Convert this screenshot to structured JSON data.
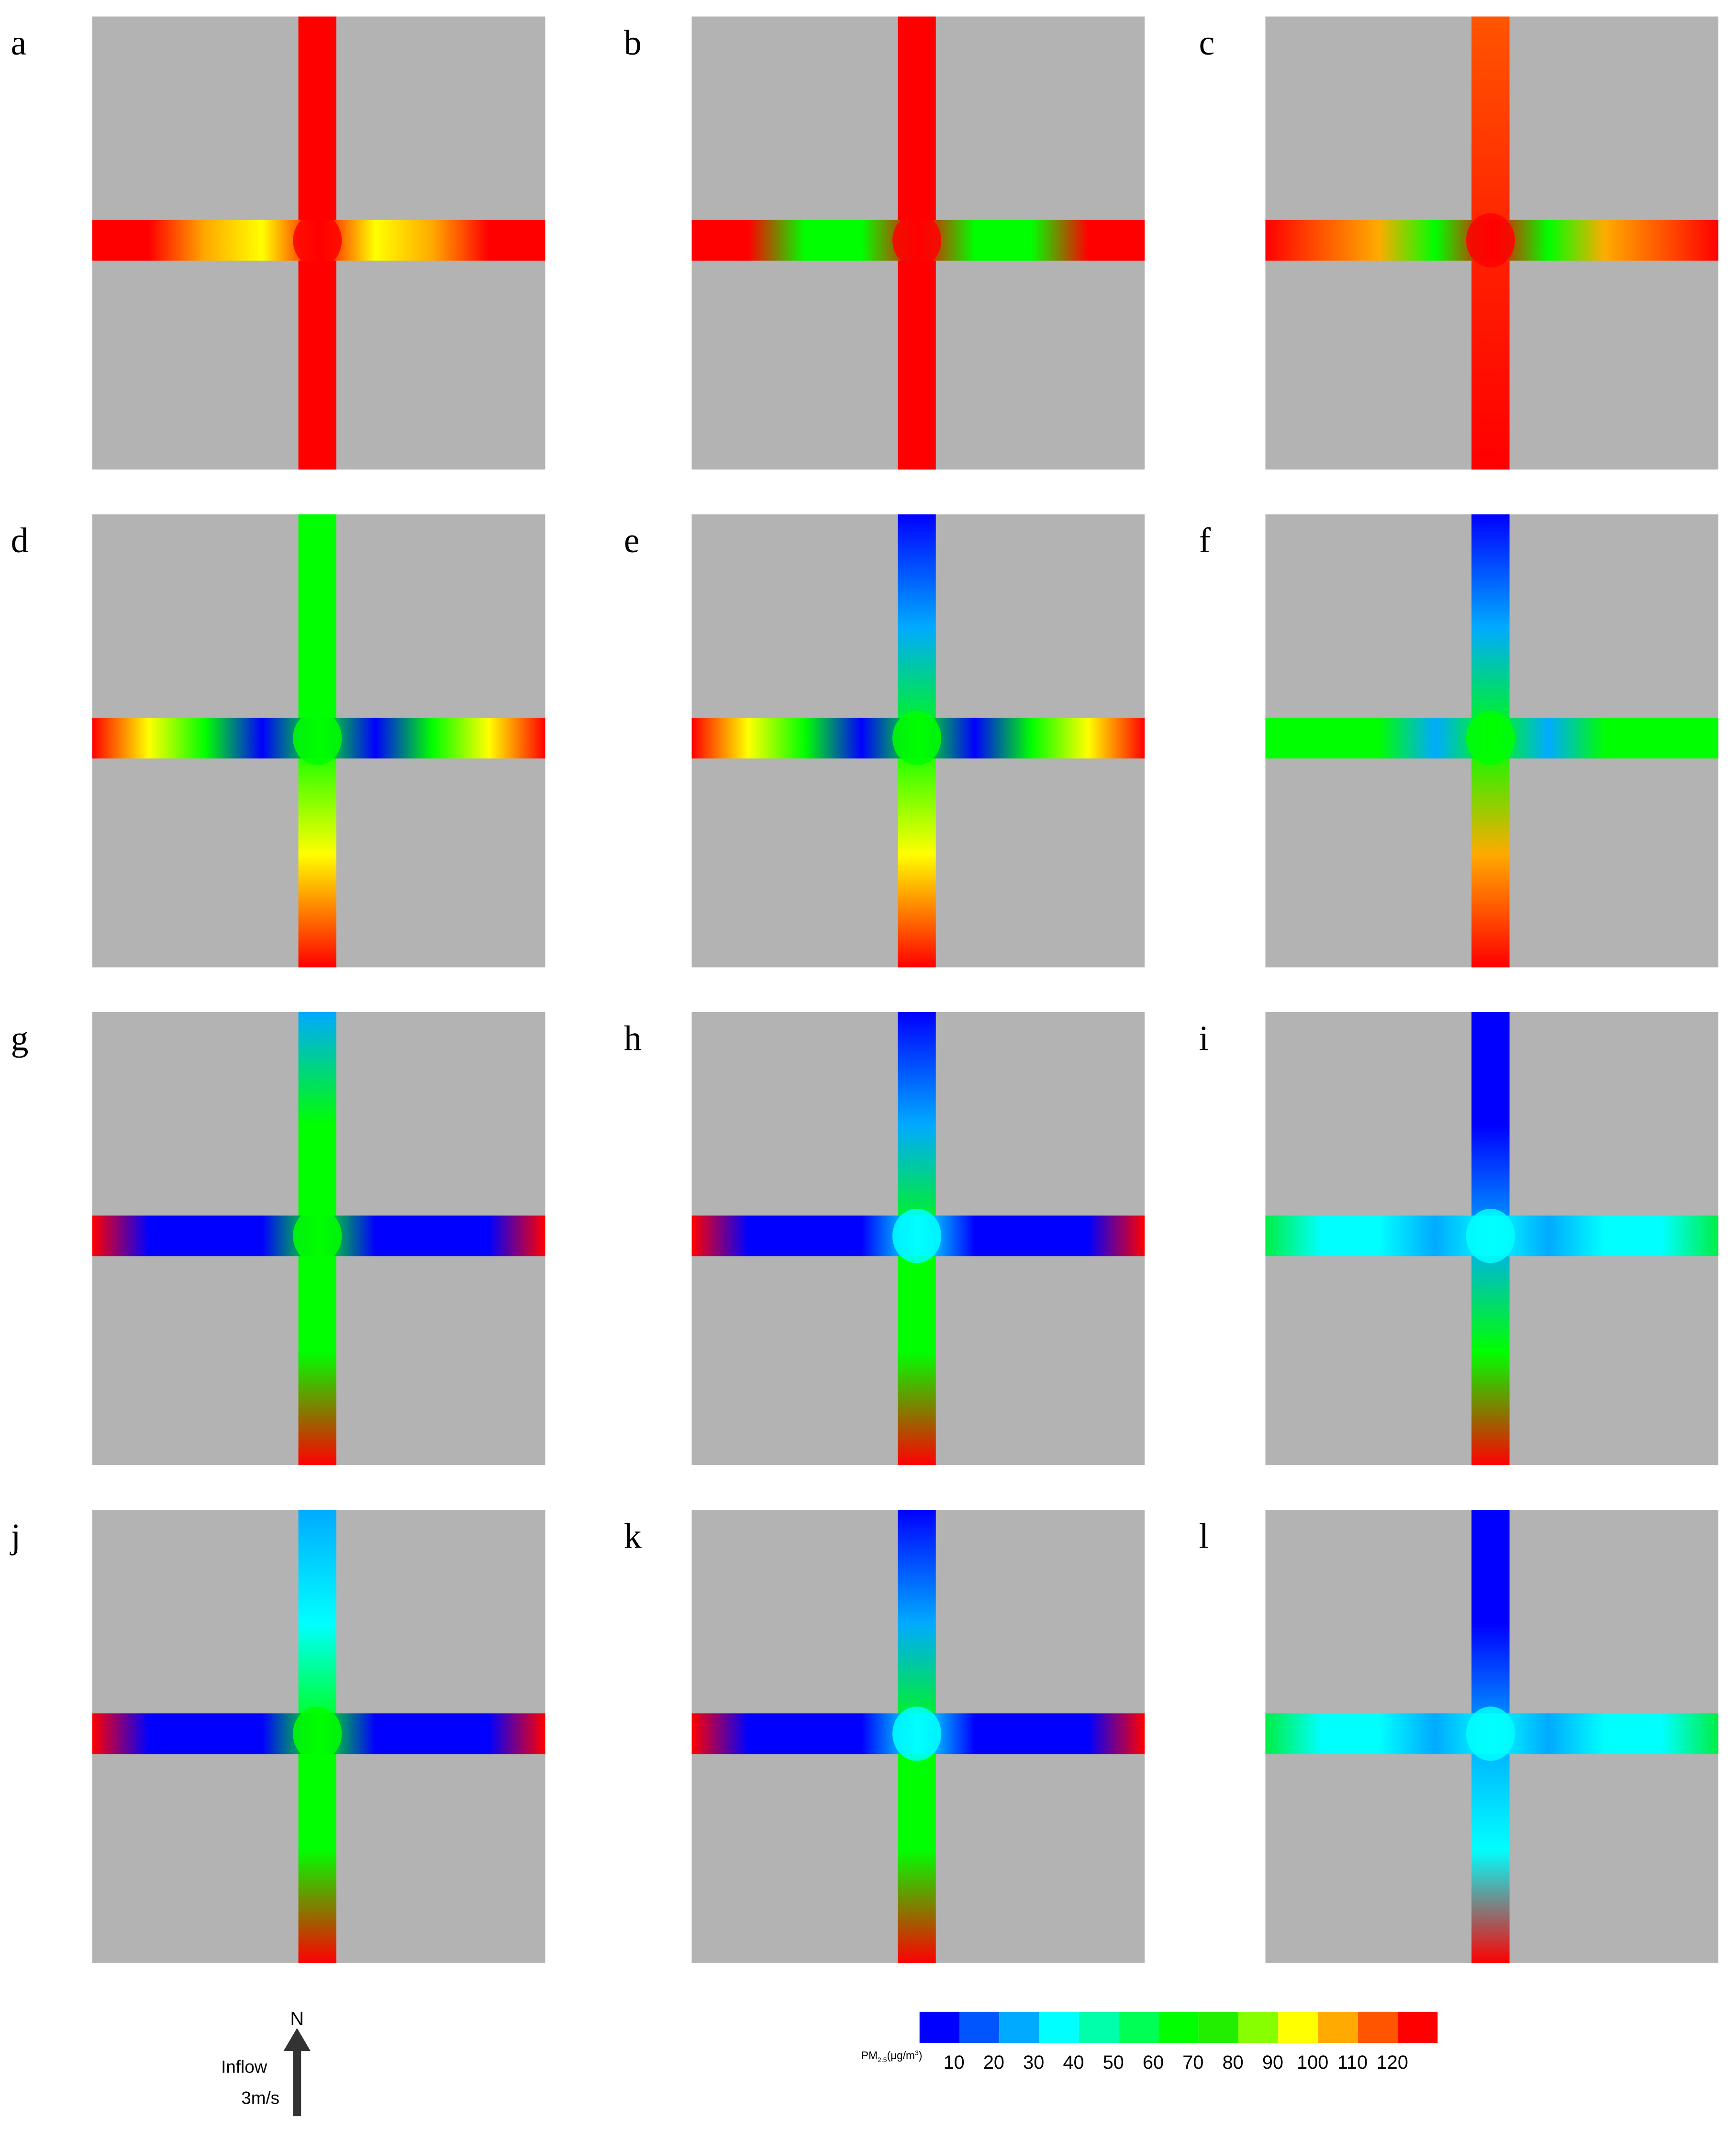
{
  "panels": [
    {
      "label": "a"
    },
    {
      "label": "b"
    },
    {
      "label": "c"
    },
    {
      "label": "d"
    },
    {
      "label": "e"
    },
    {
      "label": "f"
    },
    {
      "label": "g"
    },
    {
      "label": "h"
    },
    {
      "label": "i"
    },
    {
      "label": "j"
    },
    {
      "label": "k"
    },
    {
      "label": "l"
    }
  ],
  "compass": {
    "north": "N",
    "inflow": "Inflow",
    "speed": "3m/s"
  },
  "colorbar": {
    "label": {
      "prefix": "PM",
      "sub": "2.5",
      "unit": "(μg/m",
      "sup": "3",
      "close": ")"
    },
    "ticks": [
      10,
      20,
      30,
      40,
      50,
      60,
      70,
      80,
      90,
      100,
      110,
      120
    ],
    "colors": [
      "#0000ff",
      "#0055ff",
      "#00aaff",
      "#00ffff",
      "#00ffaa",
      "#00ff55",
      "#00ff00",
      "#22ee00",
      "#88ff00",
      "#ffff00",
      "#ffaa00",
      "#ff5500",
      "#ff0000"
    ]
  }
}
